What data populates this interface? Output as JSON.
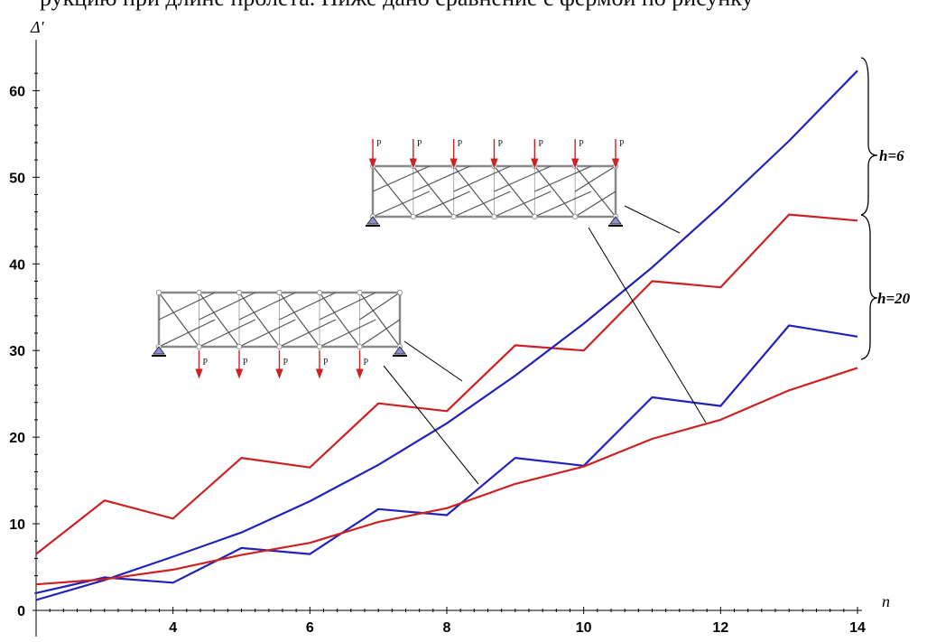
{
  "page_caption_partial": "рукцию при длине пролета. Ниже дано сравнение с фермой по рисунку",
  "chart_data": {
    "type": "line",
    "title": "",
    "xlabel": "n",
    "ylabel": "Δ'",
    "xlim": [
      2,
      14
    ],
    "ylim": [
      0,
      64
    ],
    "x_ticks": [
      4,
      6,
      8,
      10,
      12,
      14
    ],
    "y_ticks": [
      0,
      10,
      20,
      30,
      40,
      50,
      60
    ],
    "x_tick_labels": [
      "4",
      "6",
      "8",
      "10",
      "12",
      "14"
    ],
    "y_tick_labels": [
      "0",
      "10",
      "20",
      "30",
      "40",
      "50",
      "60"
    ],
    "grid": false,
    "series": [
      {
        "color": "#cc2222",
        "x": [
          2,
          3,
          4,
          5,
          6,
          7,
          8,
          9,
          10,
          11,
          12,
          13,
          14
        ],
        "y": [
          6.5,
          12.7,
          10.6,
          17.6,
          16.5,
          23.9,
          23.0,
          30.6,
          30.0,
          38.0,
          37.3,
          45.7,
          45.0
        ]
      },
      {
        "color": "#2222bb",
        "x": [
          2,
          3,
          4,
          5,
          6,
          7,
          8,
          9,
          10,
          11,
          12,
          13,
          14
        ],
        "y": [
          1.2,
          3.5,
          6.2,
          9.0,
          12.6,
          16.8,
          21.6,
          27.1,
          33.1,
          39.6,
          46.7,
          54.2,
          62.3
        ]
      },
      {
        "color": "#2222bb",
        "x": [
          2,
          3,
          4,
          5,
          6,
          7,
          8,
          9,
          10,
          11,
          12,
          13,
          14
        ],
        "y": [
          2.0,
          3.8,
          3.2,
          7.2,
          6.5,
          11.7,
          11.0,
          17.6,
          16.7,
          24.6,
          23.6,
          32.9,
          31.6
        ]
      },
      {
        "color": "#cc2222",
        "x": [
          2,
          3,
          4,
          5,
          6,
          7,
          8,
          9,
          10,
          11,
          12,
          13,
          14
        ],
        "y": [
          3.0,
          3.6,
          4.7,
          6.4,
          7.8,
          10.2,
          11.8,
          14.6,
          16.6,
          19.8,
          22.0,
          25.4,
          28.0
        ]
      }
    ],
    "annotations": [
      {
        "text": "h=6"
      },
      {
        "text": "h=20"
      }
    ],
    "inset_load_label": "P"
  }
}
